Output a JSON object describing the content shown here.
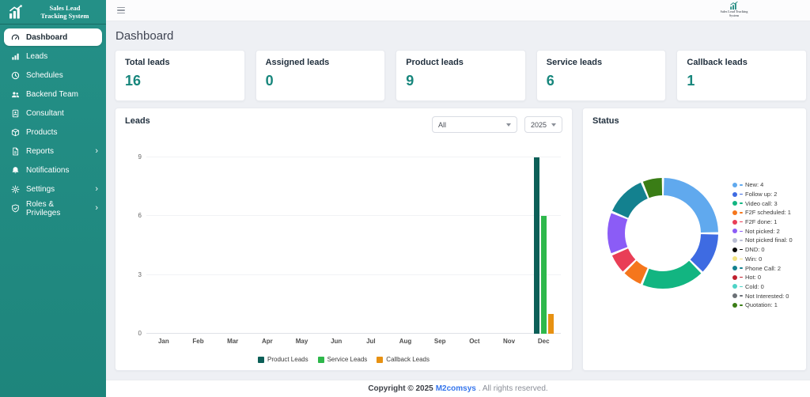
{
  "app": {
    "brand_line1": "Sales Lead",
    "brand_line2": "Tracking System"
  },
  "sidebar": {
    "items": [
      {
        "label": "Dashboard",
        "icon": "gauge-icon",
        "active": true,
        "has_submenu": false
      },
      {
        "label": "Leads",
        "icon": "bar-chart-icon",
        "active": false,
        "has_submenu": false
      },
      {
        "label": "Schedules",
        "icon": "clock-icon",
        "active": false,
        "has_submenu": false
      },
      {
        "label": "Backend Team",
        "icon": "users-icon",
        "active": false,
        "has_submenu": false
      },
      {
        "label": "Consultant",
        "icon": "id-card-icon",
        "active": false,
        "has_submenu": false
      },
      {
        "label": "Products",
        "icon": "box-icon",
        "active": false,
        "has_submenu": false
      },
      {
        "label": "Reports",
        "icon": "file-icon",
        "active": false,
        "has_submenu": true
      },
      {
        "label": "Notifications",
        "icon": "bell-icon",
        "active": false,
        "has_submenu": false
      },
      {
        "label": "Settings",
        "icon": "gear-icon",
        "active": false,
        "has_submenu": true
      },
      {
        "label": "Roles & Privileges",
        "icon": "shield-icon",
        "active": false,
        "has_submenu": true
      }
    ]
  },
  "page": {
    "title": "Dashboard"
  },
  "stats": [
    {
      "label": "Total leads",
      "value": "16"
    },
    {
      "label": "Assigned leads",
      "value": "0"
    },
    {
      "label": "Product leads",
      "value": "9"
    },
    {
      "label": "Service leads",
      "value": "6"
    },
    {
      "label": "Callback leads",
      "value": "1"
    }
  ],
  "leads_card": {
    "title": "Leads",
    "filter_type": "All",
    "filter_year": "2025"
  },
  "status_card": {
    "title": "Status"
  },
  "chart_data": [
    {
      "type": "bar",
      "title": "Leads",
      "categories": [
        "Jan",
        "Feb",
        "Mar",
        "Apr",
        "May",
        "Jun",
        "Jul",
        "Aug",
        "Sep",
        "Oct",
        "Nov",
        "Dec"
      ],
      "series": [
        {
          "name": "Product Leads",
          "color": "#0c5f58",
          "values": [
            0,
            0,
            0,
            0,
            0,
            0,
            0,
            0,
            0,
            0,
            0,
            9
          ]
        },
        {
          "name": "Service Leads",
          "color": "#2eb84b",
          "values": [
            0,
            0,
            0,
            0,
            0,
            0,
            0,
            0,
            0,
            0,
            0,
            6
          ]
        },
        {
          "name": "Callback Leads",
          "color": "#e79112",
          "values": [
            0,
            0,
            0,
            0,
            0,
            0,
            0,
            0,
            0,
            0,
            0,
            1
          ]
        }
      ],
      "ylim": [
        0,
        9
      ],
      "yticks": [
        0,
        3,
        6,
        9
      ],
      "grid": true,
      "legend_position": "bottom"
    },
    {
      "type": "pie",
      "donut": true,
      "title": "Status",
      "legend_position": "right",
      "slices": [
        {
          "label": "New",
          "value": 4,
          "color": "#60a9ee"
        },
        {
          "label": "Follow up",
          "value": 2,
          "color": "#3e6be2"
        },
        {
          "label": "Video call",
          "value": 3,
          "color": "#12b581"
        },
        {
          "label": "F2F scheduled",
          "value": 1,
          "color": "#f5761c"
        },
        {
          "label": "F2F done",
          "value": 1,
          "color": "#e93e56"
        },
        {
          "label": "Not picked",
          "value": 2,
          "color": "#8b5cf6"
        },
        {
          "label": "Not picked final",
          "value": 0,
          "color": "#b9bdd3"
        },
        {
          "label": "DND",
          "value": 0,
          "color": "#0a0a0a"
        },
        {
          "label": "Win",
          "value": 0,
          "color": "#f2e27e"
        },
        {
          "label": "Phone Call",
          "value": 2,
          "color": "#13818f"
        },
        {
          "label": "Hot",
          "value": 0,
          "color": "#bf1f2e"
        },
        {
          "label": "Cold",
          "value": 0,
          "color": "#4ed3c6"
        },
        {
          "label": "Not Interested",
          "value": 0,
          "color": "#6b7076"
        },
        {
          "label": "Quotation",
          "value": 1,
          "color": "#3a7d16"
        }
      ]
    }
  ],
  "footer": {
    "copyright": "Copyright © 2025",
    "company": "M2comsys",
    "rights": ". All rights reserved."
  }
}
